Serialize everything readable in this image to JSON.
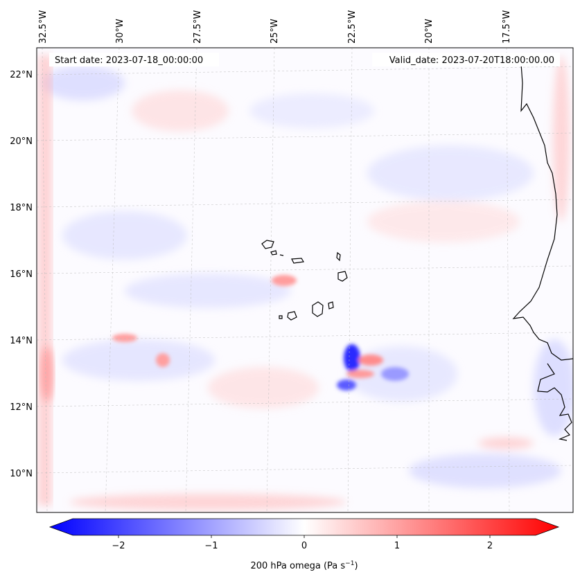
{
  "header": {
    "start_date": "Start date: 2023-07-18_00:00:00",
    "valid_date": "Valid_date: 2023-07-20T18:00:00.00"
  },
  "map": {
    "lon_labels": [
      "32.5°W",
      "30°W",
      "27.5°W",
      "25°W",
      "22.5°W",
      "20°W",
      "17.5°W"
    ],
    "lat_labels": [
      "22°N",
      "20°N",
      "18°N",
      "16°N",
      "14°N",
      "12°N",
      "10°N"
    ],
    "gridlines": true
  },
  "colorbar": {
    "ticks": [
      "−2",
      "−1",
      "0",
      "1",
      "2"
    ],
    "label": "200 hPa omega (Pa s",
    "label_sup": "−1",
    "label_end": ")",
    "range": [
      -2.75,
      2.75
    ],
    "colors": {
      "negative": "#0000ff",
      "zero": "#ffffff",
      "positive": "#ff0000"
    }
  }
}
